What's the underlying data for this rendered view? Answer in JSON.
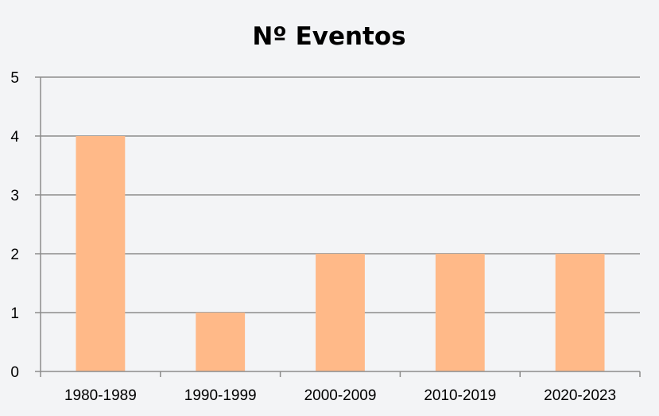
{
  "chart_data": {
    "type": "bar",
    "title": "Nº Eventos",
    "xlabel": "",
    "ylabel": "",
    "categories": [
      "1980-1989",
      "1990-1999",
      "2000-2009",
      "2010-2019",
      "2020-2023"
    ],
    "values": [
      4,
      1,
      2,
      2,
      2
    ],
    "ylim": [
      0,
      5
    ],
    "yticks": [
      "0",
      "1",
      "2",
      "3",
      "4",
      "5"
    ],
    "grid": true,
    "legend": "none",
    "bar_color": "#ffb988",
    "background": "#f3f4f6"
  }
}
